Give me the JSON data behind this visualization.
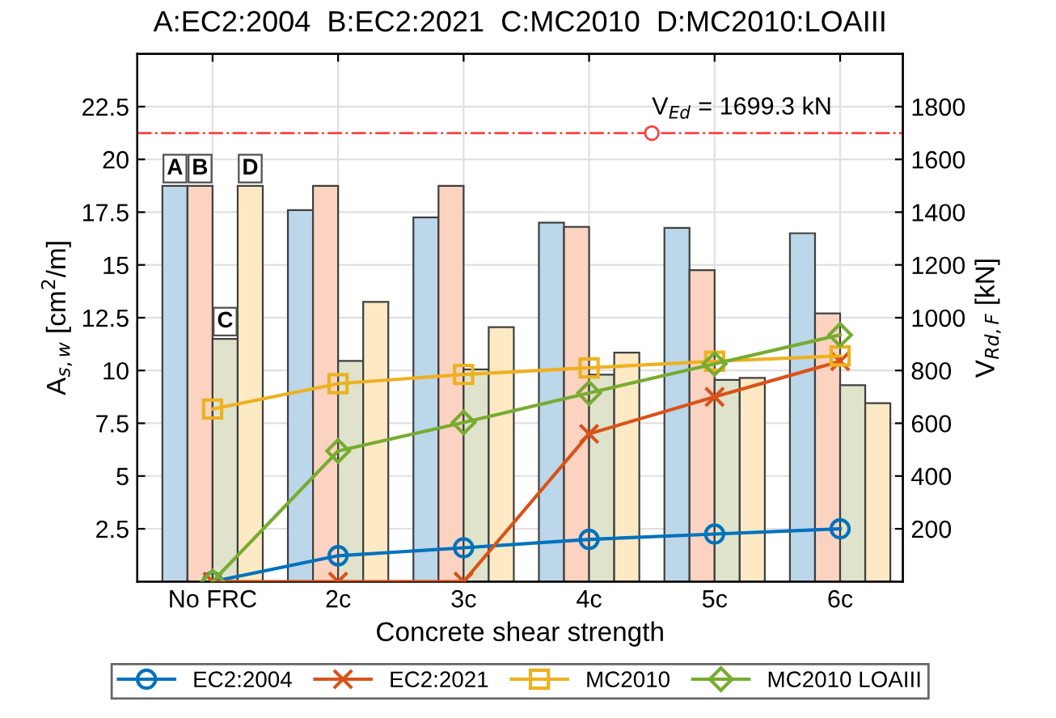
{
  "chart_data": {
    "type": "bar",
    "title": "A:EC2:2004  B:EC2:2021  C:MC2010  D:MC2010:LOAIII",
    "xlabel": "Concrete shear strength",
    "ylabel": "A$_{s,w}$ [cm$^{2}$/m]",
    "y2label": "V$_{Rd,F}$ [kN]",
    "categories": [
      "No FRC",
      "2c",
      "3c",
      "4c",
      "5c",
      "6c"
    ],
    "series": [
      {
        "color": "#bcd6ea",
        "values": [
          18.75,
          17.6,
          17.25,
          17.0,
          16.75,
          16.5
        ]
      },
      {
        "color": "#fcd3c1",
        "values": [
          18.75,
          18.75,
          18.75,
          16.8,
          14.75,
          12.7
        ]
      },
      {
        "color": "#dfe3cb",
        "values": [
          11.5,
          10.45,
          10.05,
          9.8,
          9.55,
          9.3
        ]
      },
      {
        "color": "#fde9c3",
        "values": [
          18.75,
          13.25,
          12.05,
          10.85,
          9.65,
          8.45
        ]
      },
      {
        "type": "line",
        "axis": "y2",
        "name": "EC2:2004",
        "color": "#0072bd",
        "marker": "circle",
        "values": [
          0,
          98,
          128,
          160,
          180,
          200
        ]
      },
      {
        "type": "line",
        "axis": "y2",
        "name": "EC2:2021",
        "color": "#d95319",
        "marker": "cross",
        "values": [
          0,
          0,
          0,
          560,
          700,
          835
        ]
      },
      {
        "type": "line",
        "axis": "y2",
        "name": "MC2010",
        "color": "#edb120",
        "marker": "square",
        "values": [
          654,
          750,
          785,
          810,
          835,
          855
        ]
      },
      {
        "type": "line",
        "axis": "y2",
        "name": "MC2010 LOAIII",
        "color": "#77ac30",
        "marker": "diamond",
        "values": [
          0,
          495,
          603,
          715,
          825,
          935
        ]
      }
    ],
    "annotations": [
      {
        "text": "A",
        "x": "No FRC",
        "y": 18.75
      },
      {
        "text": "B",
        "x": "No FRC",
        "y": 18.75
      },
      {
        "text": "C",
        "x": "No FRC",
        "y": 11.5
      },
      {
        "text": "D",
        "x": "No FRC",
        "y": 18.75
      }
    ],
    "ref_lines": [
      {
        "axis": "y2",
        "value": 1699.3,
        "label": "V$_{Ed}$ = 1699.3 kN",
        "color": "#ff4040",
        "line_style": "dashdot"
      }
    ],
    "ylim": [
      0,
      25
    ],
    "yticks": [
      2.5,
      5,
      7.5,
      10,
      12.5,
      15,
      17.5,
      20,
      22.5
    ],
    "y2lim": [
      0,
      2000
    ],
    "y2ticks": [
      200,
      400,
      600,
      800,
      1000,
      1200,
      1400,
      1600,
      1800
    ],
    "grid": true,
    "legend": "bottom"
  }
}
